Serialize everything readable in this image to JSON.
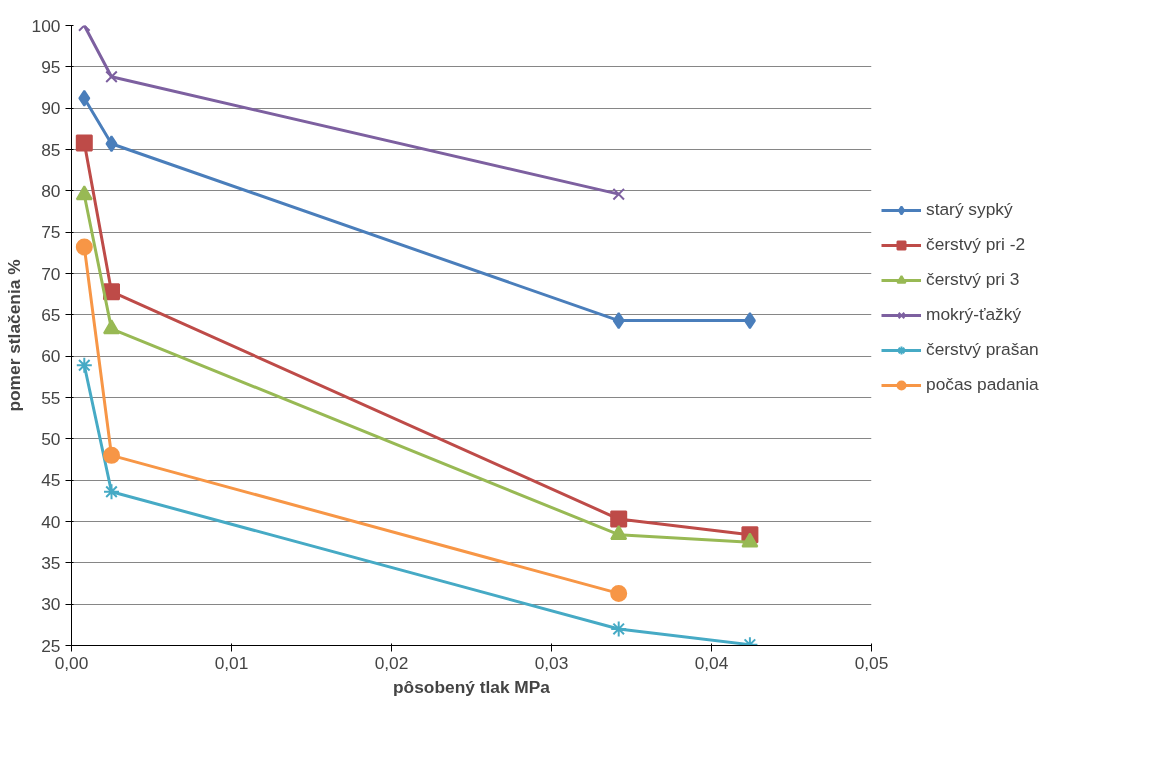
{
  "chart_data": {
    "type": "line",
    "xlabel": "pôsobený tlak MPa",
    "ylabel": "pomer stlačenia %",
    "xlim": [
      0,
      0.05
    ],
    "xticks": [
      {
        "value": 0,
        "label": "0,00"
      },
      {
        "value": 0.01,
        "label": "0,01"
      },
      {
        "value": 0.02,
        "label": "0,02"
      },
      {
        "value": 0.03,
        "label": "0,03"
      },
      {
        "value": 0.04,
        "label": "0,04"
      },
      {
        "value": 0.05,
        "label": "0,05"
      }
    ],
    "ylim": [
      25,
      100
    ],
    "yticks": [
      25,
      30,
      35,
      40,
      45,
      50,
      55,
      60,
      65,
      70,
      75,
      80,
      85,
      90,
      95,
      100
    ],
    "grid": "y",
    "legend": "right",
    "line_style": "solid",
    "series": [
      {
        "name": "starý sypký",
        "color": "#4a7ebb",
        "marker": "diamond",
        "x": [
          0.0008,
          0.0025,
          0.0342,
          0.0424
        ],
        "values": [
          91.2,
          85.7,
          64.3,
          64.3
        ]
      },
      {
        "name": "čerstvý pri -2",
        "color": "#be4b48",
        "marker": "square",
        "x": [
          0.0008,
          0.0025,
          0.0342,
          0.0424
        ],
        "values": [
          85.8,
          67.8,
          40.3,
          38.4
        ]
      },
      {
        "name": "čerstvý pri 3",
        "color": "#98b954",
        "marker": "triangle",
        "x": [
          0.0008,
          0.0025,
          0.0342,
          0.0424
        ],
        "values": [
          79.5,
          63.3,
          38.4,
          37.5
        ]
      },
      {
        "name": "mokrý-ťažký",
        "color": "#7d60a0",
        "marker": "x",
        "x": [
          0.0008,
          0.0025,
          0.0342
        ],
        "values": [
          100,
          93.8,
          79.6
        ]
      },
      {
        "name": "čerstvý prašan",
        "color": "#46aac5",
        "marker": "cross",
        "x": [
          0.0008,
          0.0025,
          0.0342,
          0.0424
        ],
        "values": [
          58.9,
          43.6,
          27.0,
          25.1
        ]
      },
      {
        "name": "počas padania",
        "color": "#f79646",
        "marker": "circle",
        "x": [
          0.0008,
          0.0025,
          0.0342
        ],
        "values": [
          73.2,
          48.0,
          31.3
        ]
      }
    ]
  }
}
